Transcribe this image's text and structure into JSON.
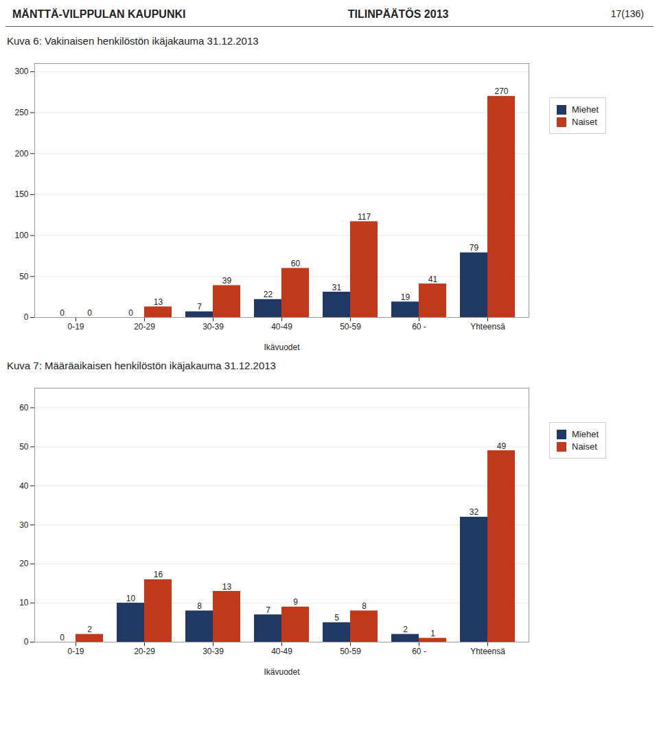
{
  "chart_data": [
    {
      "type": "bar",
      "annotations": [
        "MÄNTTÄ-VILPPULAN KAUPUNKI",
        "TILINPÄÄTÖS 2013",
        "17(136)"
      ],
      "title": "Kuva 6: Vakinaisen henkilöstön ikäjakauma 31.12.2013",
      "categories": [
        "0-19",
        "20-29",
        "30-39",
        "40-49",
        "50-59",
        "60 -",
        "Yhteensä"
      ],
      "series": [
        {
          "name": "Miehet",
          "color": "#1F3864",
          "values": [
            0,
            0,
            7,
            22,
            31,
            19,
            79
          ]
        },
        {
          "name": "Naiset",
          "color": "#C0391B",
          "values": [
            0,
            13,
            39,
            60,
            117,
            41,
            270
          ]
        }
      ],
      "xlabel": "Ikävuodet",
      "ylim": [
        0,
        310
      ],
      "yticks": [
        0,
        50,
        100,
        150,
        200,
        250,
        300
      ],
      "grid": true,
      "data_labels": true,
      "legend": "right"
    },
    {
      "type": "bar",
      "title": "Kuva 7:  Määräaikaisen henkilöstön ikäjakauma 31.12.2013",
      "categories": [
        "0-19",
        "20-29",
        "30-39",
        "40-49",
        "50-59",
        "60 -",
        "Yhteensä"
      ],
      "series": [
        {
          "name": "Miehet",
          "color": "#1F3864",
          "values": [
            0,
            10,
            8,
            7,
            5,
            2,
            32
          ]
        },
        {
          "name": "Naiset",
          "color": "#C0391B",
          "values": [
            2,
            16,
            13,
            9,
            8,
            1,
            49
          ]
        }
      ],
      "xlabel": "Ikävuodet",
      "ylim": [
        0,
        65
      ],
      "yticks": [
        0,
        10,
        20,
        30,
        40,
        50,
        60
      ],
      "grid": true,
      "data_labels": true,
      "legend": "right"
    }
  ]
}
